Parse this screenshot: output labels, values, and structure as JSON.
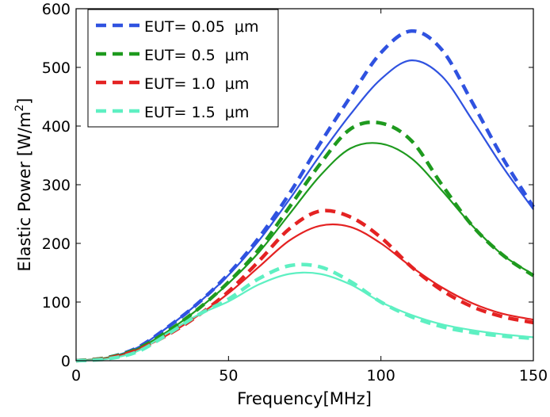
{
  "chart_data": {
    "type": "line",
    "title": "",
    "xlabel": "Frequency[MHz]",
    "ylabel": "Elastic Power [W/m",
    "ylabel_sup": "2",
    "ylabel_end": "]",
    "xlim": [
      0,
      150
    ],
    "ylim": [
      0,
      600
    ],
    "xticks": [
      0,
      50,
      100,
      150
    ],
    "yticks": [
      0,
      100,
      200,
      300,
      400,
      500,
      600
    ],
    "grid": false,
    "legend_position": "top-left",
    "x": [
      0,
      10,
      20,
      30,
      40,
      50,
      60,
      70,
      80,
      90,
      100,
      110,
      120,
      130,
      140,
      150
    ],
    "series": [
      {
        "name": "EUT= 0.05  μm",
        "color": "#2f52e0",
        "style": "dashed",
        "legend": true,
        "values": [
          0,
          5,
          22,
          57,
          98,
          148,
          210,
          285,
          370,
          450,
          525,
          562,
          530,
          440,
          345,
          262
        ]
      },
      {
        "name": "EUT= 0.05  μm (solid)",
        "color": "#2f52e0",
        "style": "solid",
        "legend": false,
        "values": [
          0,
          5,
          22,
          57,
          98,
          146,
          205,
          275,
          350,
          420,
          480,
          512,
          485,
          410,
          330,
          258
        ]
      },
      {
        "name": "EUT= 0.5  μm",
        "color": "#1e9a1e",
        "style": "dashed",
        "legend": true,
        "values": [
          0,
          5,
          20,
          50,
          88,
          134,
          190,
          262,
          335,
          395,
          405,
          375,
          300,
          230,
          180,
          145
        ]
      },
      {
        "name": "EUT= 0.5  μm (solid)",
        "color": "#1e9a1e",
        "style": "solid",
        "legend": false,
        "values": [
          0,
          5,
          20,
          50,
          88,
          132,
          185,
          250,
          315,
          362,
          370,
          345,
          290,
          230,
          180,
          147
        ]
      },
      {
        "name": "EUT= 1.0  μm",
        "color": "#e42222",
        "style": "dashed",
        "legend": true,
        "values": [
          0,
          4,
          18,
          44,
          77,
          118,
          170,
          225,
          255,
          245,
          210,
          160,
          120,
          92,
          75,
          65
        ]
      },
      {
        "name": "EUT= 1.0  μm (solid)",
        "color": "#e42222",
        "style": "solid",
        "legend": false,
        "values": [
          0,
          4,
          18,
          44,
          77,
          115,
          160,
          205,
          230,
          228,
          200,
          160,
          125,
          98,
          80,
          70
        ]
      },
      {
        "name": "EUT= 1.5  μm",
        "color": "#5ef0c2",
        "style": "dashed",
        "legend": true,
        "values": [
          0,
          3,
          15,
          45,
          78,
          105,
          140,
          162,
          160,
          135,
          100,
          75,
          58,
          48,
          42,
          38
        ]
      },
      {
        "name": "EUT= 1.5  μm (solid)",
        "color": "#5ef0c2",
        "style": "solid",
        "legend": false,
        "values": [
          0,
          3,
          16,
          47,
          78,
          101,
          130,
          148,
          148,
          130,
          100,
          78,
          62,
          52,
          45,
          40
        ]
      }
    ]
  }
}
